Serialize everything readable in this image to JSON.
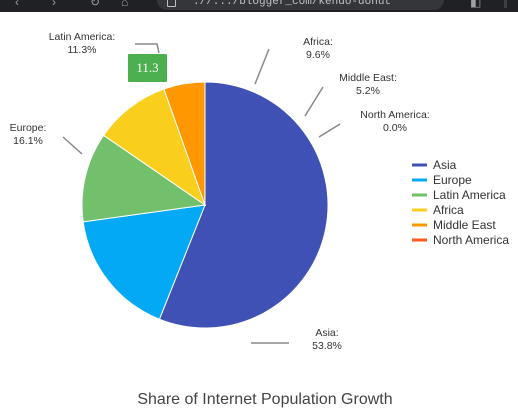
{
  "browser": {
    "url": "://.../blogger_com/kendo-donut"
  },
  "tooltip": {
    "text": "11.3",
    "color": "#4caf50"
  },
  "chart_data": {
    "type": "pie",
    "title": "Share of Internet Population Growth",
    "legend_position": "right",
    "slices": [
      {
        "name": "Asia",
        "value": 53.8,
        "label": "Asia:",
        "value_text": "53.8%",
        "color": "#3f51b5"
      },
      {
        "name": "Europe",
        "value": 16.1,
        "label": "Europe:",
        "value_text": "16.1%",
        "color": "#03a9f4"
      },
      {
        "name": "Latin America",
        "value": 11.3,
        "label": "Latin America:",
        "value_text": "11.3%",
        "color": "#72c06c"
      },
      {
        "name": "Africa",
        "value": 9.6,
        "label": "Africa:",
        "value_text": "9.6%",
        "color": "#f9ce1d"
      },
      {
        "name": "Middle East",
        "value": 5.2,
        "label": "Middle East:",
        "value_text": "5.2%",
        "color": "#ff9800"
      },
      {
        "name": "North America",
        "value": 0.0,
        "label": "North America:",
        "value_text": "0.0%",
        "color": "#ff5722"
      }
    ]
  }
}
